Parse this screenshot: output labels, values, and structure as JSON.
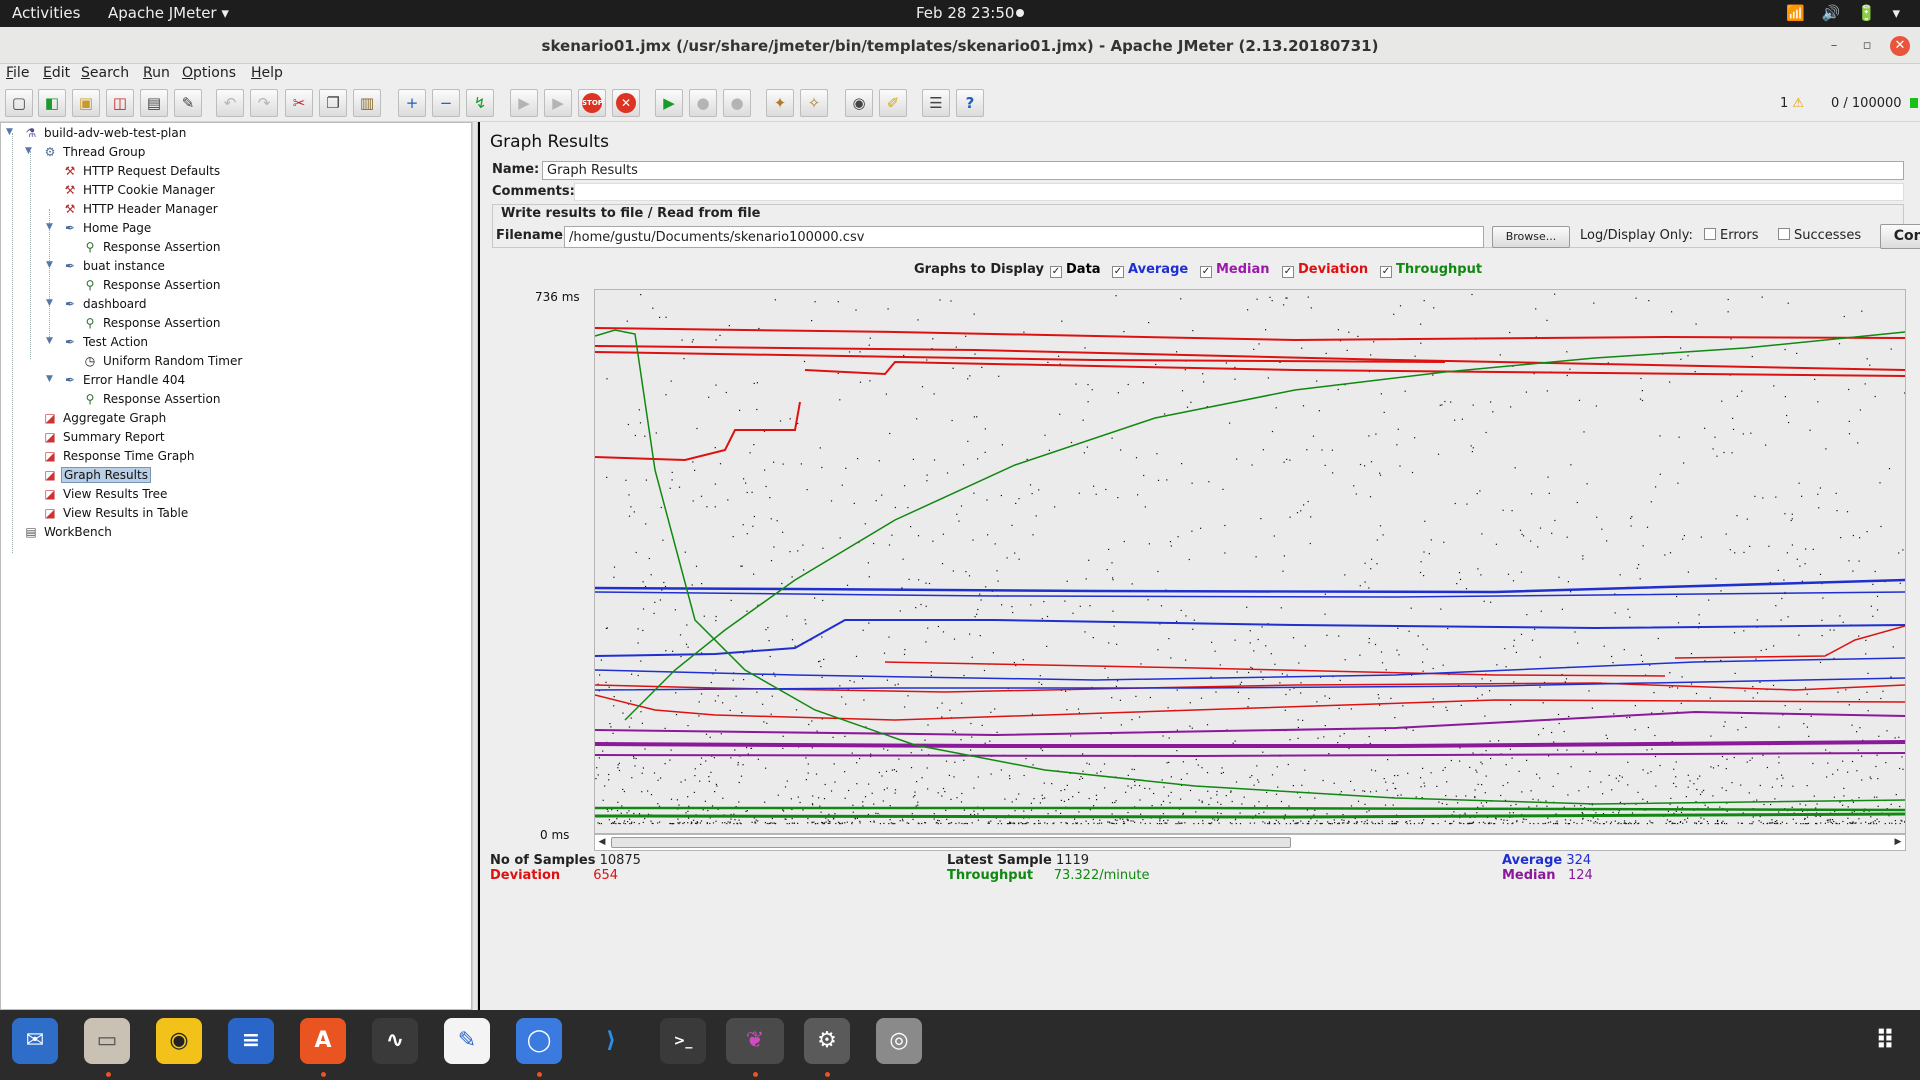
{
  "topbar": {
    "activities": "Activities",
    "app_menu": "Apache JMeter ▾",
    "clock": "Feb 28  23:50",
    "tray": "📶 🔊 🔋 ▾"
  },
  "window": {
    "title": "skenario01.jmx (/usr/share/jmeter/bin/templates/skenario01.jmx) - Apache JMeter (2.13.20180731)",
    "minimize": "–",
    "maximize": "▫",
    "close": "✕"
  },
  "menu": [
    "File",
    "Edit",
    "Search",
    "Run",
    "Options",
    "Help"
  ],
  "toolbar": {
    "warning_count": "1",
    "threads": "0 / 100000",
    "icons": [
      "new-icon",
      "templates-icon",
      "open-icon",
      "close-icon",
      "save-icon",
      "save-as-icon",
      "undo-icon",
      "redo-icon",
      "cut-icon",
      "copy-icon",
      "paste-icon",
      "expand-icon",
      "collapse-icon",
      "toggle-icon",
      "start-icon",
      "start-no-pause-icon",
      "stop-icon",
      "shutdown-icon",
      "remote-start-icon",
      "remote-stop-icon",
      "remote-shutdown-icon",
      "clear-icon",
      "clear-all-icon",
      "search-icon",
      "reset-search-icon",
      "function-helper-icon",
      "help-icon"
    ]
  },
  "tree": [
    {
      "label": "build-adv-web-test-plan",
      "icon": "test-plan-icon"
    },
    {
      "label": "Thread Group",
      "icon": "thread-group-icon"
    },
    {
      "label": "HTTP Request Defaults",
      "icon": "config-element-icon"
    },
    {
      "label": "HTTP Cookie Manager",
      "icon": "config-element-icon"
    },
    {
      "label": "HTTP Header Manager",
      "icon": "config-element-icon"
    },
    {
      "label": "Home Page",
      "icon": "sampler-icon"
    },
    {
      "label": "Response Assertion",
      "icon": "assertion-icon"
    },
    {
      "label": "buat instance",
      "icon": "sampler-icon"
    },
    {
      "label": "Response Assertion",
      "icon": "assertion-icon"
    },
    {
      "label": "dashboard",
      "icon": "sampler-icon"
    },
    {
      "label": "Response Assertion",
      "icon": "assertion-icon"
    },
    {
      "label": "Test Action",
      "icon": "sampler-icon"
    },
    {
      "label": "Uniform Random Timer",
      "icon": "timer-icon"
    },
    {
      "label": "Error Handle 404",
      "icon": "sampler-icon"
    },
    {
      "label": "Response Assertion",
      "icon": "assertion-icon"
    },
    {
      "label": "Aggregate Graph",
      "icon": "listener-icon"
    },
    {
      "label": "Summary Report",
      "icon": "listener-icon"
    },
    {
      "label": "Response Time Graph",
      "icon": "listener-icon"
    },
    {
      "label": "Graph Results",
      "icon": "listener-icon",
      "selected": true
    },
    {
      "label": "View Results Tree",
      "icon": "listener-icon"
    },
    {
      "label": "View Results in Table",
      "icon": "listener-icon"
    },
    {
      "label": "WorkBench",
      "icon": "workbench-icon"
    }
  ],
  "panel": {
    "title": "Graph Results",
    "name_label": "Name:",
    "name_value": "Graph Results",
    "comments_label": "Comments:",
    "comments_value": "",
    "file_group_title": "Write results to file / Read from file",
    "filename_label": "Filename",
    "filename_value": "/home/gustu/Documents/skenario100000.csv",
    "browse_label": "Browse...",
    "log_display_label": "Log/Display Only:",
    "errors_label": "Errors",
    "successes_label": "Successes",
    "configure_label": "Configure"
  },
  "graphs_to_display": {
    "label": "Graphs to Display",
    "options": [
      {
        "label": "Data",
        "checked": true,
        "color": "#000000"
      },
      {
        "label": "Average",
        "checked": true,
        "color": "#0000ff"
      },
      {
        "label": "Median",
        "checked": true,
        "color": "#9900aa"
      },
      {
        "label": "Deviation",
        "checked": true,
        "color": "#ff0000"
      },
      {
        "label": "Throughput",
        "checked": true,
        "color": "#008800"
      }
    ]
  },
  "graph": {
    "y_max_label": "736  ms",
    "y_min_label": "0  ms"
  },
  "stats": {
    "samples_label": "No of Samples",
    "samples_value": "10875",
    "deviation_label": "Deviation",
    "deviation_value": "654",
    "latest_label": "Latest Sample",
    "latest_value": "1119",
    "throughput_label": "Throughput",
    "throughput_value": "73.322/minute",
    "average_label": "Average",
    "average_value": "324",
    "median_label": "Median",
    "median_value": "124"
  },
  "colors": {
    "deviation": "#dd1111",
    "throughput": "#118811",
    "average": "#1f2fd0",
    "median": "#8a1a9a"
  },
  "dock": [
    "thunderbird-icon",
    "files-icon",
    "rhythmbox-icon",
    "writer-icon",
    "software-icon",
    "system-monitor-icon",
    "text-editor-icon",
    "chromium-icon",
    "vscode-icon",
    "terminal-icon",
    "jmeter-icon",
    "settings-icon",
    "disk-icon",
    "app-grid-icon"
  ]
}
